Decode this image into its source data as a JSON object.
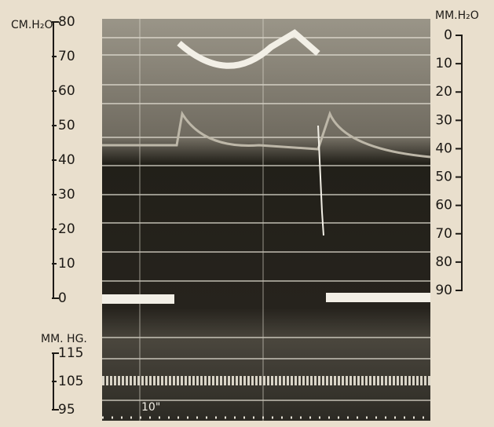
{
  "left_axis": {
    "label": "CM.H₂O",
    "ticks": [
      "80",
      "70",
      "60",
      "50",
      "40",
      "30",
      "20",
      "10",
      "0"
    ]
  },
  "right_axis": {
    "label": "MM.H₂O",
    "ticks": [
      "0",
      "10",
      "20",
      "30",
      "40",
      "50",
      "60",
      "70",
      "80",
      "90"
    ]
  },
  "pressure_axis": {
    "label": "MM. HG.",
    "ticks": [
      "115",
      "105",
      "95"
    ]
  },
  "time_marker": "10\""
}
